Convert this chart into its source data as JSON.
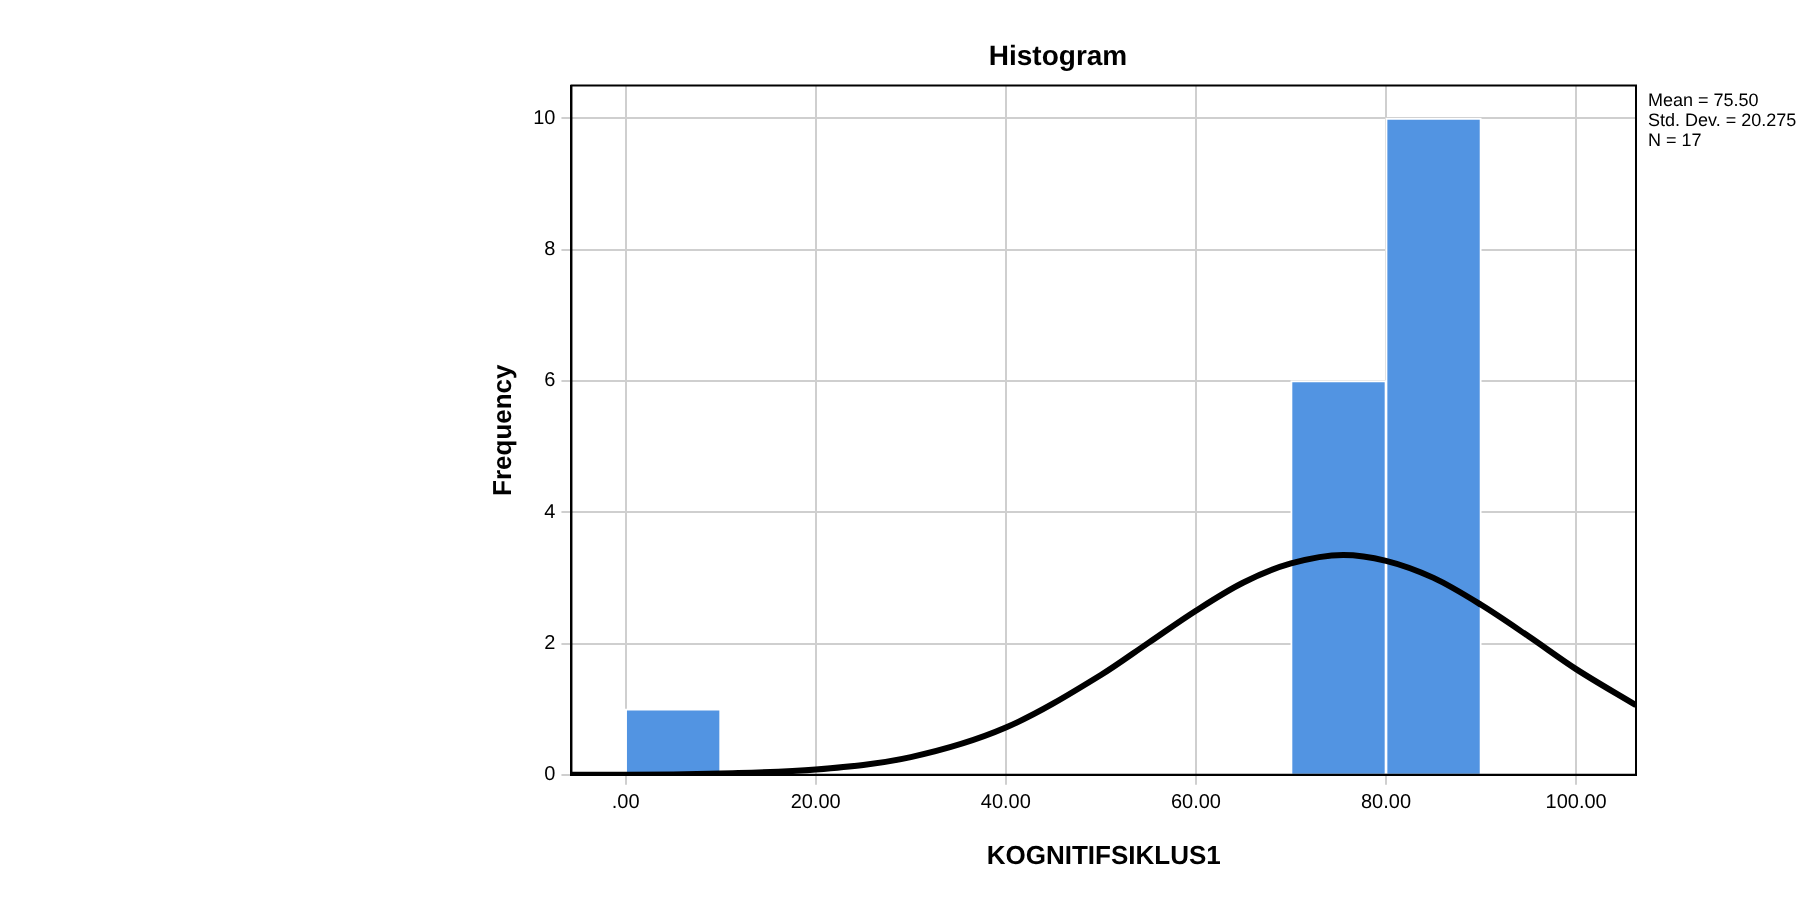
{
  "chart_data": {
    "type": "histogram",
    "title": "Histogram",
    "xlabel": "KOGNITIFSIKLUS1",
    "ylabel": "Frequency",
    "bins": [
      0,
      10,
      20,
      30,
      40,
      50,
      60,
      70,
      80,
      90
    ],
    "values": [
      1,
      0,
      0,
      0,
      0,
      0,
      0,
      6,
      10
    ],
    "color": "#5294e2",
    "series": [
      {
        "type": "line",
        "color": "#000000",
        "x": [
          -5.7,
          0,
          10,
          20,
          30,
          40,
          50,
          55,
          60,
          65,
          70,
          75.5,
          80,
          85,
          90,
          95,
          100,
          106.3
        ],
        "values": [
          0.0,
          0.0,
          0.02,
          0.08,
          0.27,
          0.72,
          1.52,
          2.01,
          2.5,
          2.93,
          3.22,
          3.35,
          3.26,
          3.0,
          2.59,
          2.11,
          1.61,
          1.06
        ]
      }
    ],
    "xlim": [
      -5.7,
      106.3
    ],
    "ylim": [
      0,
      10.5
    ],
    "xticks": [
      {
        "value": 0,
        "label": ".00"
      },
      {
        "value": 20,
        "label": "20.00"
      },
      {
        "value": 40,
        "label": "40.00"
      },
      {
        "value": 60,
        "label": "60.00"
      },
      {
        "value": 80,
        "label": "80.00"
      },
      {
        "value": 100,
        "label": "100.00"
      }
    ],
    "yticks": [
      0,
      2,
      4,
      6,
      8,
      10
    ],
    "grid": true,
    "marker": "none",
    "annotations": [
      "Mean = 75.50",
      "Std. Dev. = 20.275",
      "N = 17"
    ]
  }
}
